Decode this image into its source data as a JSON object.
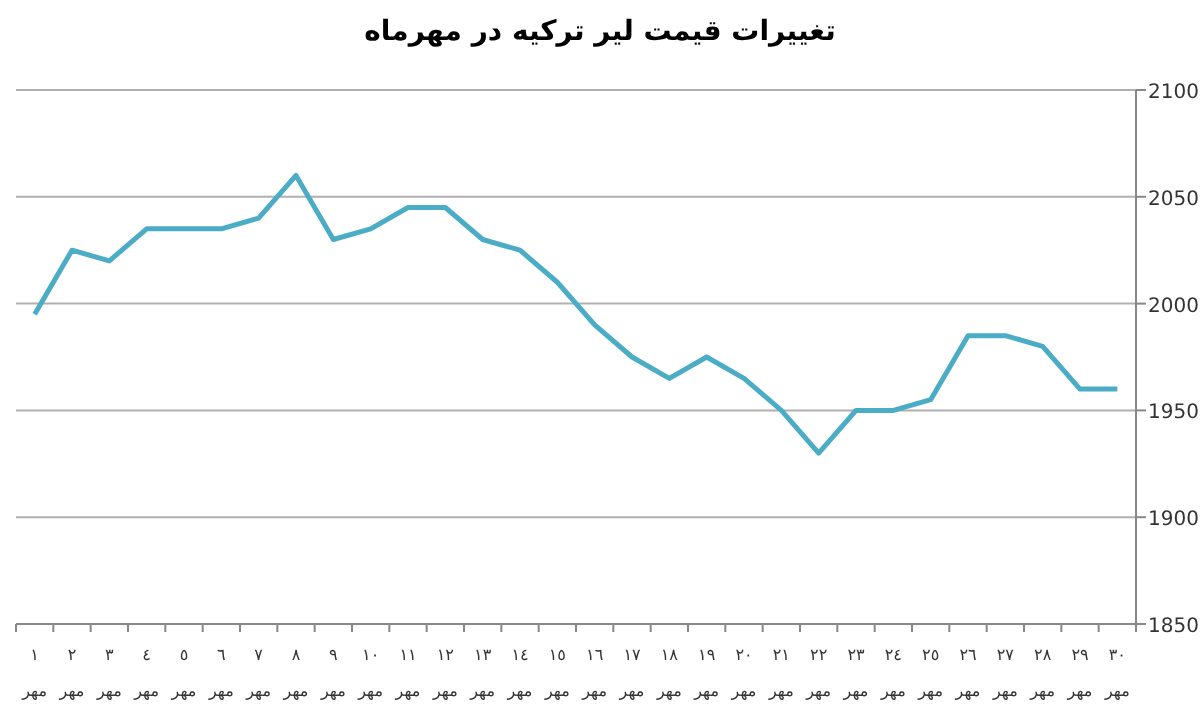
{
  "chart_data": {
    "type": "line",
    "title": "تغییرات قیمت لیر ترکیه در مهرماه",
    "categories": [
      "١ مهر",
      "٢ مهر",
      "٣ مهر",
      "٤ مهر",
      "٥ مهر",
      "٦ مهر",
      "٧ مهر",
      "٨ مهر",
      "٩ مهر",
      "١٠ مهر",
      "١١ مهر",
      "١٢ مهر",
      "١٣ مهر",
      "١٤ مهر",
      "١٥ مهر",
      "١٦ مهر",
      "١٧ مهر",
      "١٨ مهر",
      "١٩ مهر",
      "٢٠ مهر",
      "٢١ مهر",
      "٢٢ مهر",
      "٢٣ مهر",
      "٢٤ مهر",
      "٢٥ مهر",
      "٢٦ مهر",
      "٢٧ مهر",
      "٢٨ مهر",
      "٢٩ مهر",
      "٣٠ مهر"
    ],
    "series": [
      {
        "color": "#4bacc6",
        "values": [
          1995,
          2025,
          2020,
          2035,
          2035,
          2035,
          2040,
          2060,
          2030,
          2035,
          2045,
          2045,
          2030,
          2025,
          2010,
          1990,
          1975,
          1965,
          1975,
          1965,
          1950,
          1930,
          1950,
          1950,
          1955,
          1985,
          1985,
          1980,
          1960,
          1960
        ]
      }
    ],
    "ylim": [
      1850,
      2100
    ],
    "yticks": [
      1850,
      1900,
      1950,
      2000,
      2050,
      2100
    ],
    "grid": "y",
    "marker": "none",
    "line_style": "solid"
  }
}
